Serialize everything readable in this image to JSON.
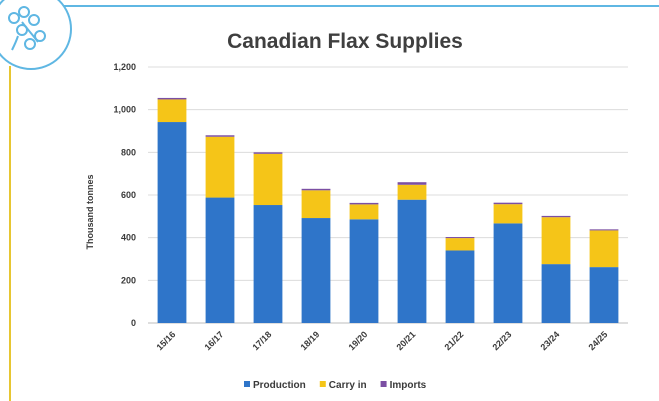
{
  "chart_data": {
    "type": "bar",
    "stacked": true,
    "title": "Canadian Flax Supplies",
    "xlabel": "",
    "ylabel": "Thousand tonnes",
    "categories": [
      "15/16",
      "16/17",
      "17/18",
      "18/19",
      "19/20",
      "20/21",
      "21/22",
      "22/23",
      "23/24",
      "24/25"
    ],
    "series": [
      {
        "name": "Production",
        "color": "#2f75c9",
        "values": [
          942,
          588,
          553,
          492,
          486,
          578,
          340,
          467,
          276,
          262
        ]
      },
      {
        "name": "Carry in",
        "color": "#f5c518",
        "values": [
          106,
          285,
          240,
          130,
          70,
          70,
          58,
          90,
          220,
          172
        ]
      },
      {
        "name": "Imports",
        "color": "#7b4fa3",
        "values": [
          7,
          7,
          7,
          7,
          7,
          12,
          5,
          7,
          6,
          5
        ]
      }
    ],
    "ylim": [
      0,
      1200
    ],
    "yticks": [
      "0",
      "200",
      "400",
      "600",
      "800",
      "1,000",
      "1,200"
    ],
    "grid": true,
    "legend_position": "bottom"
  }
}
